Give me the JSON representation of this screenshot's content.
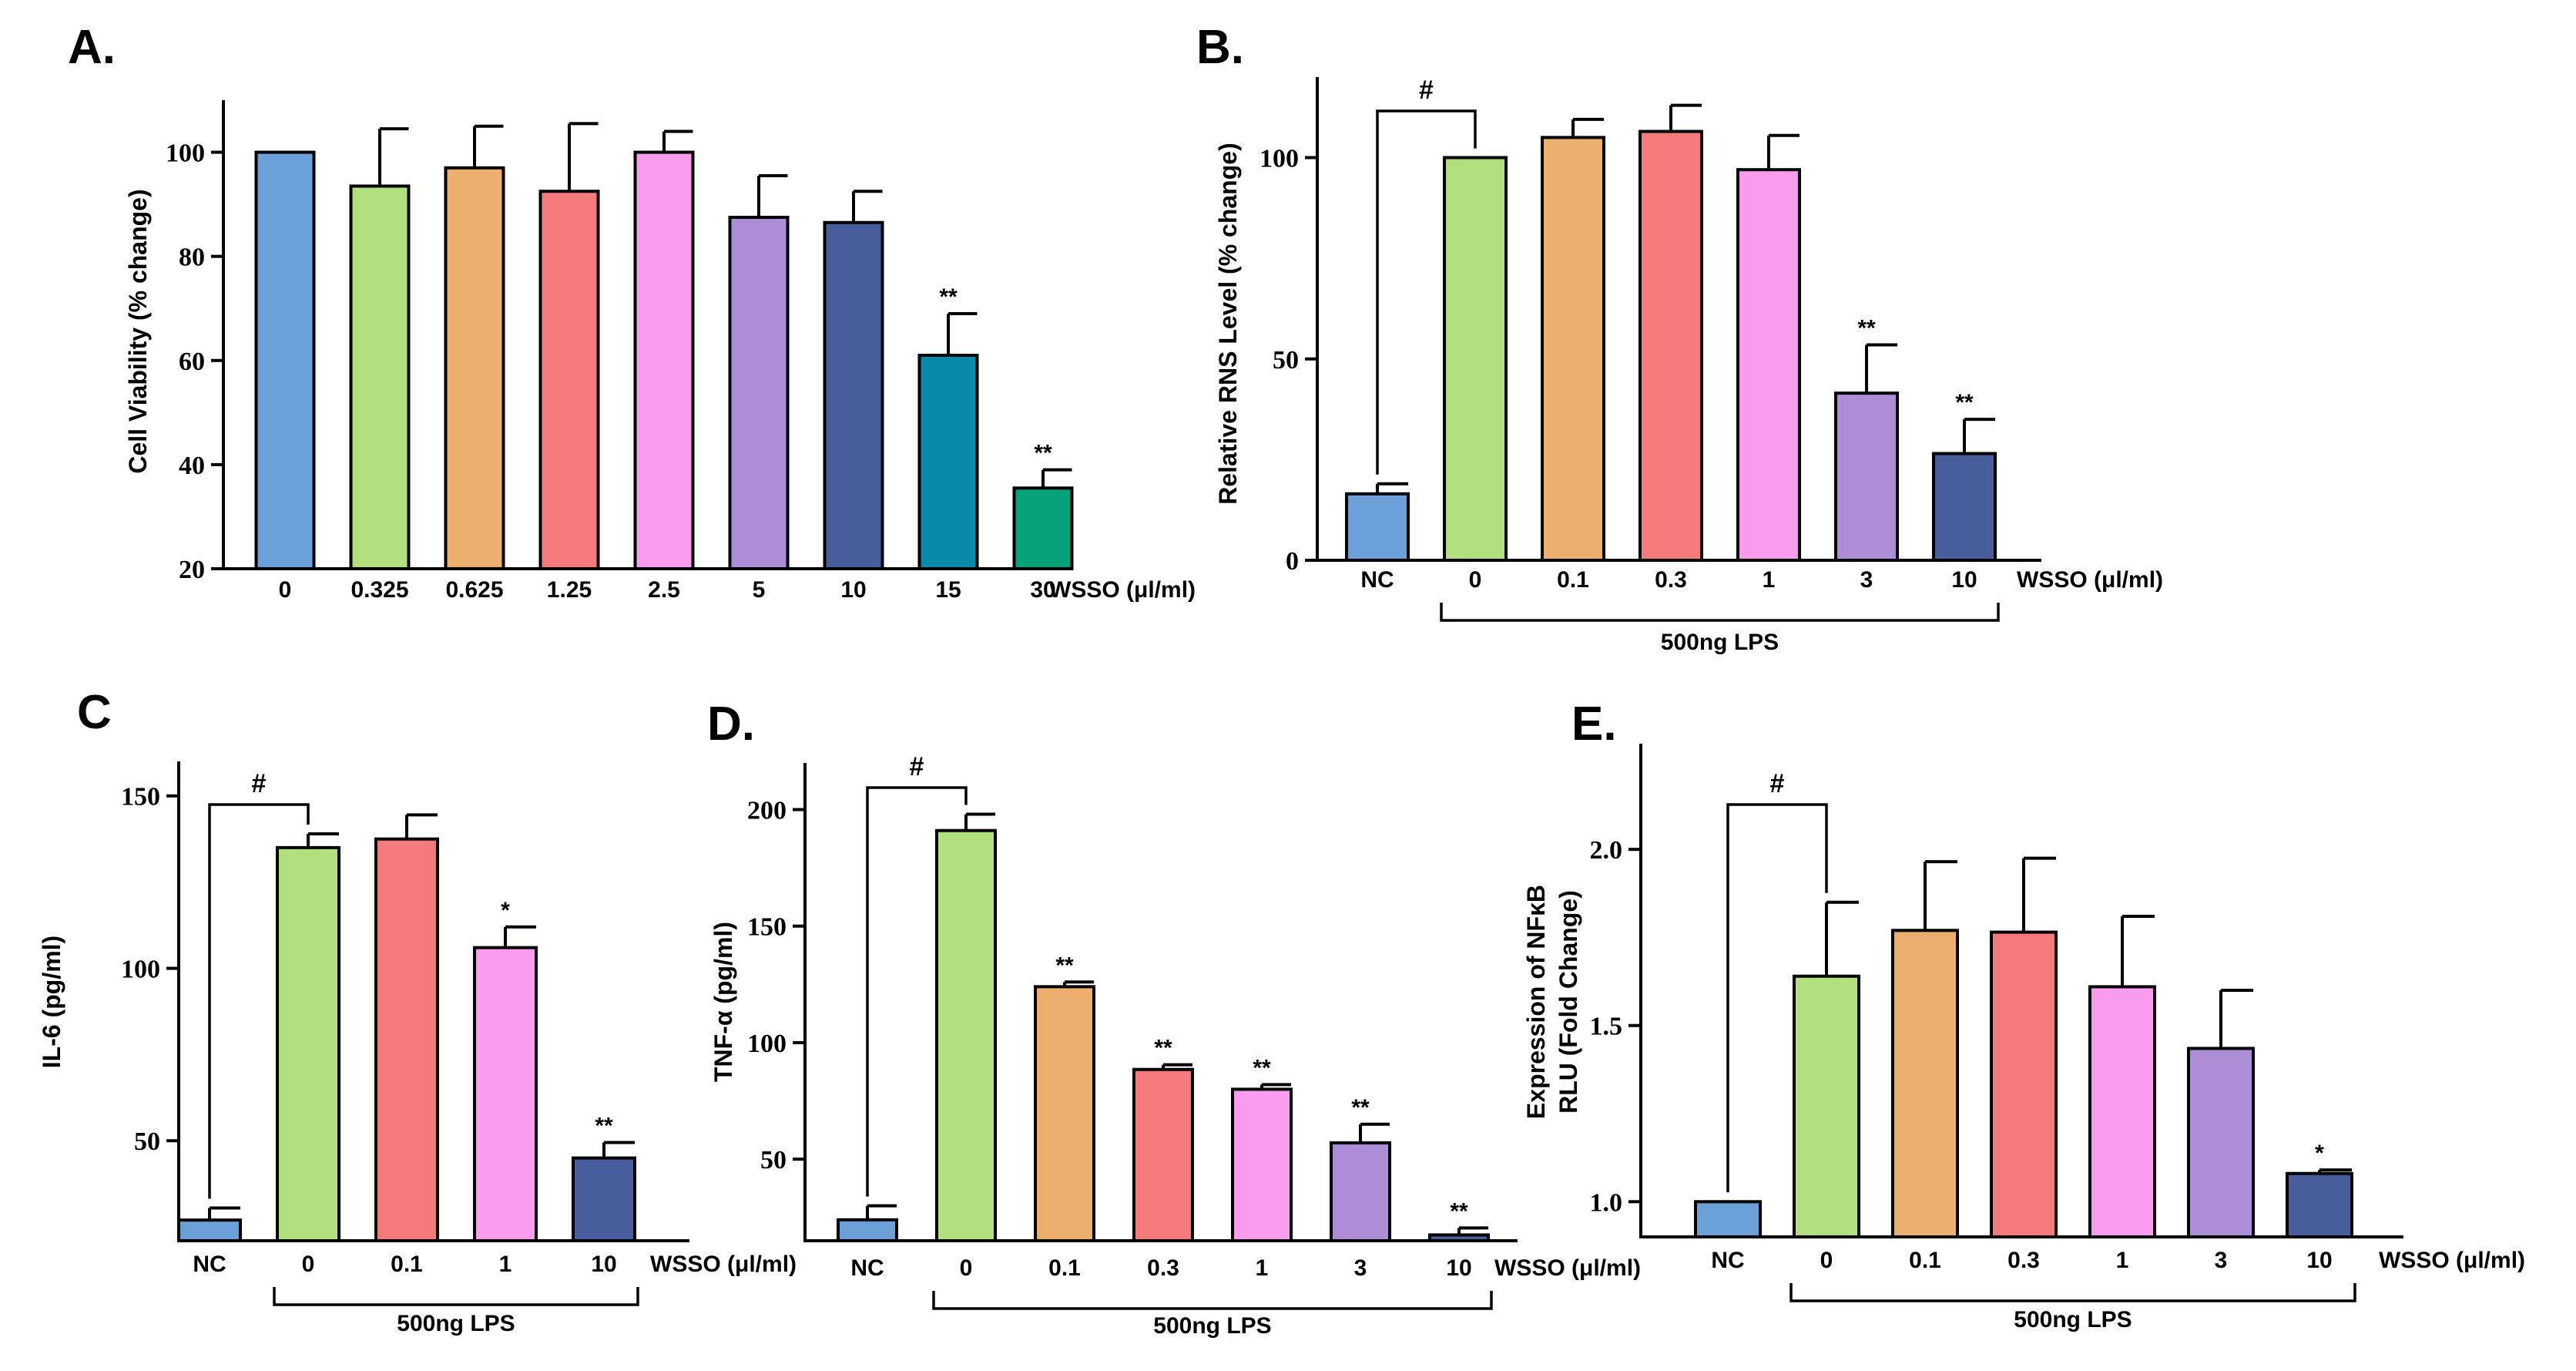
{
  "chart_data": [
    {
      "panel": "A.",
      "type": "bar",
      "categories": [
        "0",
        "0.325",
        "0.625",
        "1.25",
        "2.5",
        "5",
        "10",
        "15",
        "30"
      ],
      "values": [
        100,
        93.5,
        97,
        92.5,
        100,
        87.5,
        86.5,
        61,
        35.5
      ],
      "errors": [
        0,
        11,
        8,
        13,
        4,
        8,
        6,
        8,
        3.5
      ],
      "significance": [
        "",
        "",
        "",
        "",
        "",
        "",
        "",
        "**",
        "**"
      ],
      "colors": [
        "#6a9fd8",
        "#b2e07e",
        "#ecaf6d",
        "#f47a7c",
        "#f99cee",
        "#ad8ed6",
        "#485e9c",
        "#088aa8",
        "#06a37a"
      ],
      "ylabel": "Cell Viability (% change)",
      "xunit": "WSSO (μl/ml)",
      "ylim": [
        20,
        110
      ],
      "yticks": [
        20,
        40,
        60,
        80,
        100
      ],
      "bracket_label": "",
      "hash_label": ""
    },
    {
      "panel": "B.",
      "type": "bar",
      "categories": [
        "NC",
        "0",
        "0.1",
        "0.3",
        "1",
        "3",
        "10"
      ],
      "values": [
        16.5,
        100,
        105,
        106.5,
        97,
        41.5,
        26.5
      ],
      "errors": [
        2.5,
        0,
        4.5,
        6.5,
        8.5,
        12,
        8.5
      ],
      "significance": [
        "",
        "",
        "",
        "",
        "",
        "**",
        "**"
      ],
      "colors": [
        "#6a9fd8",
        "#b2e07e",
        "#ecaf6d",
        "#f47a7c",
        "#f99cee",
        "#ad8ed6",
        "#485e9c"
      ],
      "ylabel": "Relative RNS Level (% change)",
      "xunit": "WSSO (μl/ml)",
      "ylim": [
        0,
        120
      ],
      "yticks": [
        0,
        50,
        100
      ],
      "bracket_label": "500ng LPS",
      "hash_label": "#"
    },
    {
      "panel": "C",
      "type": "bar",
      "categories": [
        "NC",
        "0",
        "0.1",
        "1",
        "10"
      ],
      "values": [
        27,
        135,
        137.5,
        106,
        45
      ],
      "errors": [
        3.5,
        4,
        7,
        6,
        4.5
      ],
      "significance": [
        "",
        "",
        "",
        "*",
        "**"
      ],
      "colors": [
        "#6a9fd8",
        "#b2e07e",
        "#f47a7c",
        "#f99cee",
        "#485e9c"
      ],
      "ylabel": "IL-6 (pg/ml)",
      "xunit": "WSSO (μl/ml)",
      "ylim": [
        21,
        160
      ],
      "yticks": [
        50,
        100,
        150
      ],
      "bracket_label": "500ng LPS",
      "hash_label": "#"
    },
    {
      "panel": "D.",
      "type": "bar",
      "categories": [
        "NC",
        "0",
        "0.1",
        "0.3",
        "1",
        "3",
        "10"
      ],
      "values": [
        24,
        191,
        124,
        88.5,
        80,
        57,
        17.5
      ],
      "errors": [
        6,
        7,
        2,
        2,
        2,
        8,
        3
      ],
      "significance": [
        "",
        "",
        "**",
        "**",
        "**",
        "**",
        "**"
      ],
      "colors": [
        "#6a9fd8",
        "#b2e07e",
        "#ecaf6d",
        "#f47a7c",
        "#f99cee",
        "#ad8ed6",
        "#485e9c"
      ],
      "ylabel": "TNF-α (pg/ml)",
      "xunit": "WSSO (μl/ml)",
      "ylim": [
        15,
        220
      ],
      "yticks": [
        50,
        100,
        150,
        200
      ],
      "bracket_label": "500ng LPS",
      "hash_label": "#"
    },
    {
      "panel": "E.",
      "type": "bar",
      "categories": [
        "NC",
        "0",
        "0.1",
        "0.3",
        "1",
        "3",
        "10"
      ],
      "values": [
        1.0,
        1.64,
        1.77,
        1.765,
        1.61,
        1.435,
        1.08
      ],
      "errors": [
        0,
        0.21,
        0.195,
        0.21,
        0.2,
        0.165,
        0.01
      ],
      "significance": [
        "",
        "",
        "",
        "",
        "",
        "",
        "*"
      ],
      "colors": [
        "#6a9fd8",
        "#b2e07e",
        "#ecaf6d",
        "#f47a7c",
        "#f99cee",
        "#ad8ed6",
        "#485e9c"
      ],
      "ylabel": "Expression of NFκB",
      "ylabel2": "RLU (Fold Change)",
      "xunit": "WSSO (μl/ml)",
      "ylim": [
        0.9,
        2.3
      ],
      "yticks": [
        1.0,
        1.5,
        2.0
      ],
      "bracket_label": "500ng LPS",
      "hash_label": "#"
    }
  ]
}
